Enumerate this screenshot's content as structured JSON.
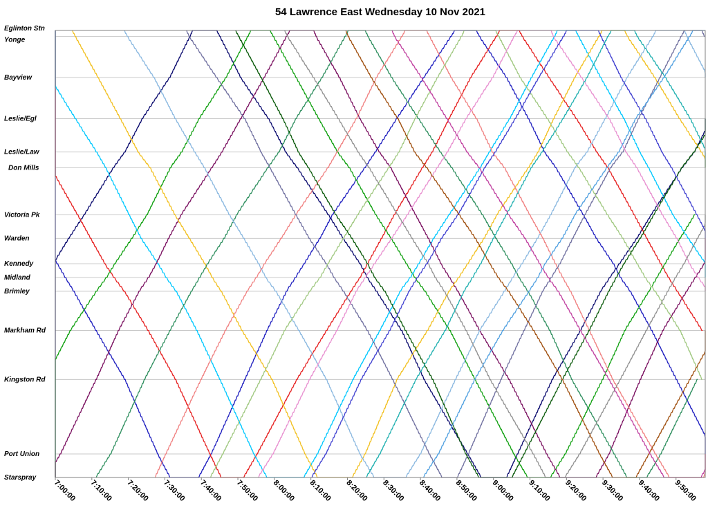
{
  "chart_data": {
    "type": "line",
    "title": "54 Lawrence East Wednesday 10 Nov 2021",
    "xlabel": "",
    "ylabel": "",
    "x_ticks": [
      "7:00:00",
      "7:10:00",
      "7:20:00",
      "7:30:00",
      "7:40:00",
      "7:50:00",
      "8:00:00",
      "8:10:00",
      "8:20:00",
      "8:30:00",
      "8:40:00",
      "8:50:00",
      "9:00:00",
      "9:10:00",
      "9:20:00",
      "9:30:00",
      "9:40:00",
      "9:50:00"
    ],
    "xlim": [
      "7:00:00",
      "9:58:00"
    ],
    "grid": "horizontal lines at each stop",
    "stops": [
      {
        "name": "Eglinton Stn",
        "km": 0.0
      },
      {
        "name": "Yonge",
        "km": 0.3
      },
      {
        "name": "Bayview",
        "km": 2.4
      },
      {
        "name": "Leslie/Egl",
        "km": 4.5
      },
      {
        "name": "Leslie/Law",
        "km": 6.2
      },
      {
        "name": "Don Mills",
        "km": 7.0
      },
      {
        "name": "Victoria Pk",
        "km": 9.4
      },
      {
        "name": "Warden",
        "km": 10.6
      },
      {
        "name": "Kennedy",
        "km": 11.9
      },
      {
        "name": "Midland",
        "km": 12.6
      },
      {
        "name": "Brimley",
        "km": 13.3
      },
      {
        "name": "Markham Rd",
        "km": 15.3
      },
      {
        "name": "Kingston Rd",
        "km": 17.8
      },
      {
        "name": "Port Union",
        "km": 21.6
      },
      {
        "name": "Starspray",
        "km": 22.8
      }
    ],
    "colors": [
      "#1f1fbf",
      "#0a0a6e",
      "#e62020",
      "#10a010",
      "#00c8ff",
      "#7a1060",
      "#f2c020",
      "#2f8f5f",
      "#8ab8e0",
      "#f08080",
      "#7070a0",
      "#a0c880",
      "#0a5a0a",
      "#e890d0",
      "#909090",
      "#4040d0",
      "#a05010",
      "#20b0b0",
      "#c040a0",
      "#50a0e0"
    ],
    "series_note": "Each series is one bus trip: [[time, stop-name], ...] spanning the route from Eglinton Stn to Starspray and back.",
    "series": []
  }
}
